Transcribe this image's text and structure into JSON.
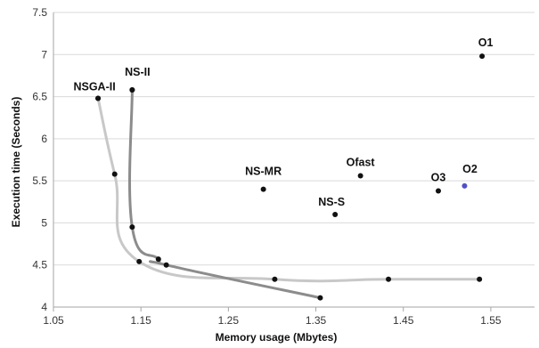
{
  "chart_data": {
    "type": "scatter",
    "title": "",
    "xlabel": "Memory usage (Mbytes)",
    "ylabel": "Execution time (Seconds)",
    "xlim": [
      1.05,
      1.6
    ],
    "ylim": [
      4,
      7.5
    ],
    "xticks": [
      "1.05",
      "1.15",
      "1.25",
      "1.35",
      "1.45",
      "1.55"
    ],
    "yticks": [
      "4",
      "4.5",
      "5",
      "5.5",
      "6",
      "6.5",
      "7",
      "7.5"
    ],
    "grid": "horizontal",
    "series": [
      {
        "color": "#c8c8c8",
        "style": "smooth-line",
        "points": [
          {
            "x": 1.101,
            "y": 6.48
          },
          {
            "x": 1.12,
            "y": 5.58
          },
          {
            "x": 1.148,
            "y": 4.54
          },
          {
            "x": 1.303,
            "y": 4.33
          },
          {
            "x": 1.433,
            "y": 4.33
          },
          {
            "x": 1.537,
            "y": 4.33
          }
        ]
      },
      {
        "color": "#8c8c8c",
        "style": "smooth-line",
        "points": [
          {
            "x": 1.14,
            "y": 6.58
          },
          {
            "x": 1.14,
            "y": 4.95
          },
          {
            "x": 1.17,
            "y": 4.57
          },
          {
            "x": 1.179,
            "y": 4.5
          },
          {
            "x": 1.355,
            "y": 4.11
          }
        ]
      }
    ],
    "labeled_points": [
      {
        "label": "NSGA-II",
        "x": 1.101,
        "y": 6.48
      },
      {
        "label": "NS-II",
        "x": 1.14,
        "y": 6.58
      },
      {
        "label": "NS-MR",
        "x": 1.29,
        "y": 5.4
      },
      {
        "label": "NS-S",
        "x": 1.372,
        "y": 5.1
      },
      {
        "label": "Ofast",
        "x": 1.401,
        "y": 5.56
      },
      {
        "label": "O3",
        "x": 1.49,
        "y": 5.38
      },
      {
        "label": "O2",
        "x": 1.52,
        "y": 5.44
      },
      {
        "label": "O1",
        "x": 1.54,
        "y": 6.98
      }
    ]
  }
}
